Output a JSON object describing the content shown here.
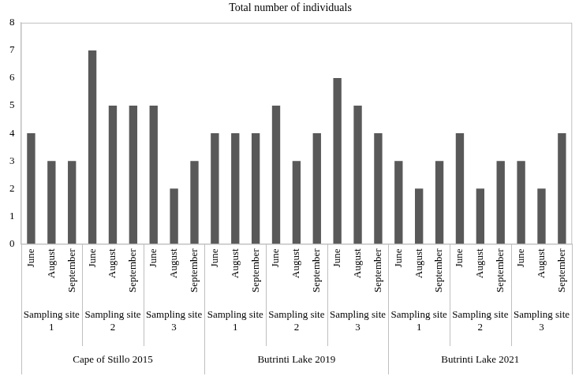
{
  "chart_data": {
    "type": "bar",
    "title": "Total number of individuals",
    "categories": [
      [
        "June",
        "Sampling site 1",
        "Cape of Stillo 2015"
      ],
      [
        "August",
        "Sampling site 1",
        "Cape of Stillo 2015"
      ],
      [
        "September",
        "Sampling site 1",
        "Cape of Stillo 2015"
      ],
      [
        "June",
        "Sampling site 2",
        "Cape of Stillo 2015"
      ],
      [
        "August",
        "Sampling site 2",
        "Cape of Stillo 2015"
      ],
      [
        "September",
        "Sampling site 2",
        "Cape of Stillo 2015"
      ],
      [
        "June",
        "Sampling site 3",
        "Cape of Stillo 2015"
      ],
      [
        "August",
        "Sampling site 3",
        "Cape of Stillo 2015"
      ],
      [
        "September",
        "Sampling site 3",
        "Cape of Stillo 2015"
      ],
      [
        "June",
        "Sampling site 1",
        "Butrinti Lake 2019"
      ],
      [
        "August",
        "Sampling site 1",
        "Butrinti Lake 2019"
      ],
      [
        "September",
        "Sampling site 1",
        "Butrinti Lake 2019"
      ],
      [
        "June",
        "Sampling site 2",
        "Butrinti Lake 2019"
      ],
      [
        "August",
        "Sampling site 2",
        "Butrinti Lake 2019"
      ],
      [
        "September",
        "Sampling site 2",
        "Butrinti Lake 2019"
      ],
      [
        "June",
        "Sampling site 3",
        "Butrinti Lake 2019"
      ],
      [
        "August",
        "Sampling site 3",
        "Butrinti Lake 2019"
      ],
      [
        "September",
        "Sampling site 3",
        "Butrinti Lake 2019"
      ],
      [
        "June",
        "Sampling site 1",
        "Butrinti Lake 2021"
      ],
      [
        "August",
        "Sampling site 1",
        "Butrinti Lake 2021"
      ],
      [
        "September",
        "Sampling site 1",
        "Butrinti Lake 2021"
      ],
      [
        "June",
        "Sampling site 2",
        "Butrinti Lake 2021"
      ],
      [
        "August",
        "Sampling site 2",
        "Butrinti Lake 2021"
      ],
      [
        "September",
        "Sampling site 2",
        "Butrinti Lake 2021"
      ],
      [
        "June",
        "Sampling site 3",
        "Butrinti Lake 2021"
      ],
      [
        "August",
        "Sampling site 3",
        "Butrinti Lake 2021"
      ],
      [
        "September",
        "Sampling site 3",
        "Butrinti Lake 2021"
      ]
    ],
    "values": [
      4,
      3,
      3,
      7,
      5,
      5,
      5,
      2,
      3,
      4,
      4,
      4,
      5,
      3,
      4,
      6,
      5,
      4,
      3,
      2,
      3,
      4,
      2,
      3,
      3,
      2,
      4
    ],
    "color": "#595959",
    "ylim": [
      0,
      8
    ],
    "yticks": [
      0,
      1,
      2,
      3,
      4,
      5,
      6,
      7,
      8
    ],
    "grid": false
  }
}
